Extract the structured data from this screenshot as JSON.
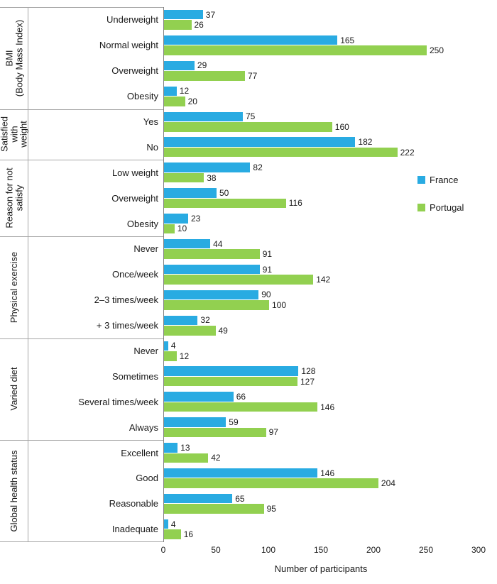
{
  "chart_data": {
    "type": "bar",
    "orientation": "horizontal",
    "xlabel": "Number of participants",
    "xlim": [
      0,
      300
    ],
    "xticks": [
      0,
      50,
      100,
      150,
      200,
      250,
      300
    ],
    "grid": false,
    "legend_position": "right-middle",
    "series_names": [
      "France",
      "Portugal"
    ],
    "colors": {
      "France": "#29ABE2",
      "Portugal": "#92D050"
    },
    "groups": [
      {
        "label": "BMI\n(Body Mass Index)",
        "rows": [
          {
            "category": "Underweight",
            "France": 37,
            "Portugal": 26
          },
          {
            "category": "Normal weight",
            "France": 165,
            "Portugal": 250
          },
          {
            "category": "Overweight",
            "France": 29,
            "Portugal": 77
          },
          {
            "category": "Obesity",
            "France": 12,
            "Portugal": 20
          }
        ]
      },
      {
        "label": "Satisfied\nwith\nweight",
        "rows": [
          {
            "category": "Yes",
            "France": 75,
            "Portugal": 160
          },
          {
            "category": "No",
            "France": 182,
            "Portugal": 222
          }
        ]
      },
      {
        "label": "Reason for not\nsatisfy",
        "rows": [
          {
            "category": "Low weight",
            "France": 82,
            "Portugal": 38
          },
          {
            "category": "Overweight",
            "France": 50,
            "Portugal": 116
          },
          {
            "category": "Obesity",
            "France": 23,
            "Portugal": 10
          }
        ]
      },
      {
        "label": "Physical exercise",
        "rows": [
          {
            "category": "Never",
            "France": 44,
            "Portugal": 91
          },
          {
            "category": "Once/week",
            "France": 91,
            "Portugal": 142
          },
          {
            "category": "2–3 times/week",
            "France": 90,
            "Portugal": 100
          },
          {
            "category": "+ 3 times/week",
            "France": 32,
            "Portugal": 49
          }
        ]
      },
      {
        "label": "Varied diet",
        "rows": [
          {
            "category": "Never",
            "France": 4,
            "Portugal": 12
          },
          {
            "category": "Sometimes",
            "France": 128,
            "Portugal": 127
          },
          {
            "category": "Several times/week",
            "France": 66,
            "Portugal": 146
          },
          {
            "category": "Always",
            "France": 59,
            "Portugal": 97
          }
        ]
      },
      {
        "label": "Global health status",
        "rows": [
          {
            "category": "Excellent",
            "France": 13,
            "Portugal": 42
          },
          {
            "category": "Good",
            "France": 146,
            "Portugal": 204
          },
          {
            "category": "Reasonable",
            "France": 65,
            "Portugal": 95
          },
          {
            "category": "Inadequate",
            "France": 4,
            "Portugal": 16
          }
        ]
      }
    ]
  }
}
